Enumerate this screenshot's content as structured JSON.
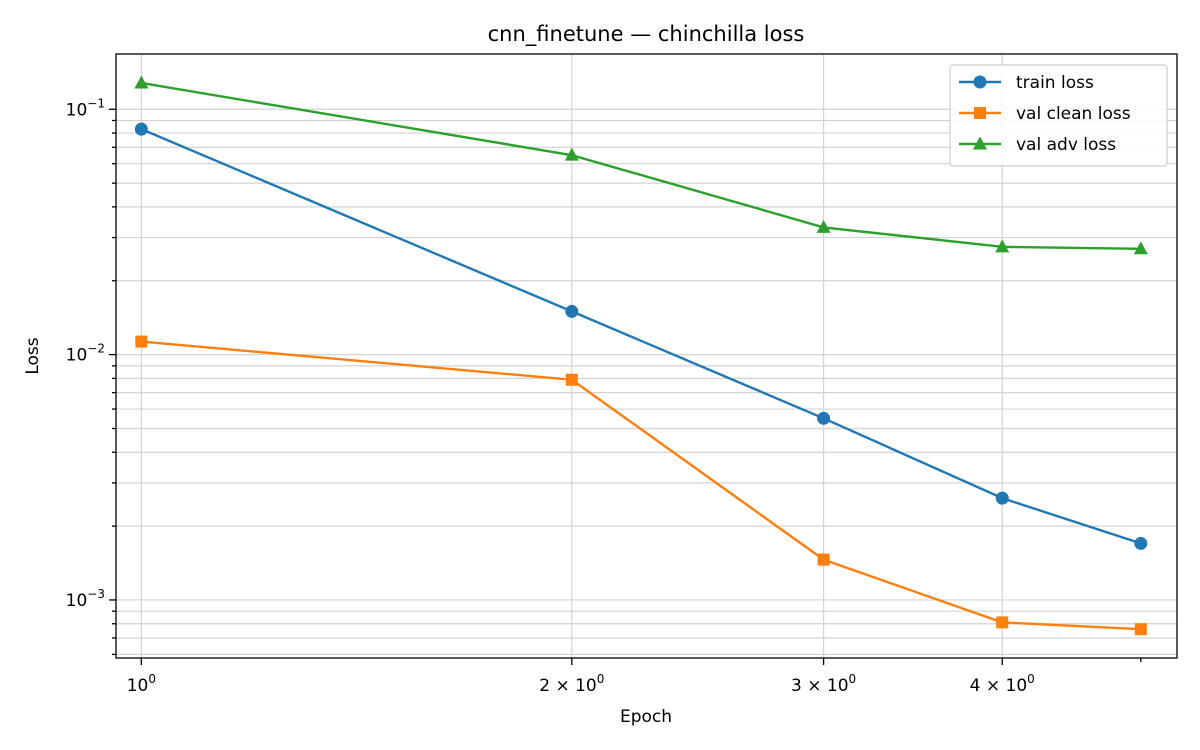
{
  "chart_data": {
    "type": "line",
    "title": "cnn_finetune — chinchilla loss",
    "xlabel": "Epoch",
    "ylabel": "Loss",
    "xscale": "log",
    "yscale": "log",
    "xlim": [
      0.96,
      5.3
    ],
    "ylim": [
      0.00058,
      0.168
    ],
    "grid": true,
    "legend_position": "top-right",
    "x_ticks": [
      {
        "value": 1,
        "base": "10",
        "exp": "0"
      },
      {
        "value": 2,
        "base": "2 × 10",
        "exp": "0"
      },
      {
        "value": 3,
        "base": "3 × 10",
        "exp": "0"
      },
      {
        "value": 4,
        "base": "4 × 10",
        "exp": "0"
      }
    ],
    "y_ticks": [
      {
        "value": 0.1,
        "base": "10",
        "exp": "−1"
      },
      {
        "value": 0.01,
        "base": "10",
        "exp": "−2"
      },
      {
        "value": 0.001,
        "base": "10",
        "exp": "−3"
      }
    ],
    "x": [
      1,
      2,
      3,
      4,
      5
    ],
    "series": [
      {
        "name": "train loss",
        "color": "#1f77b4",
        "marker": "circle",
        "values": [
          0.083,
          0.015,
          0.0055,
          0.0026,
          0.0017
        ]
      },
      {
        "name": "val clean loss",
        "color": "#ff7f0e",
        "marker": "square",
        "values": [
          0.0113,
          0.0079,
          0.00146,
          0.00081,
          0.00076
        ]
      },
      {
        "name": "val adv loss",
        "color": "#2ca02c",
        "marker": "triangle",
        "values": [
          0.128,
          0.065,
          0.033,
          0.0275,
          0.027
        ]
      }
    ]
  }
}
